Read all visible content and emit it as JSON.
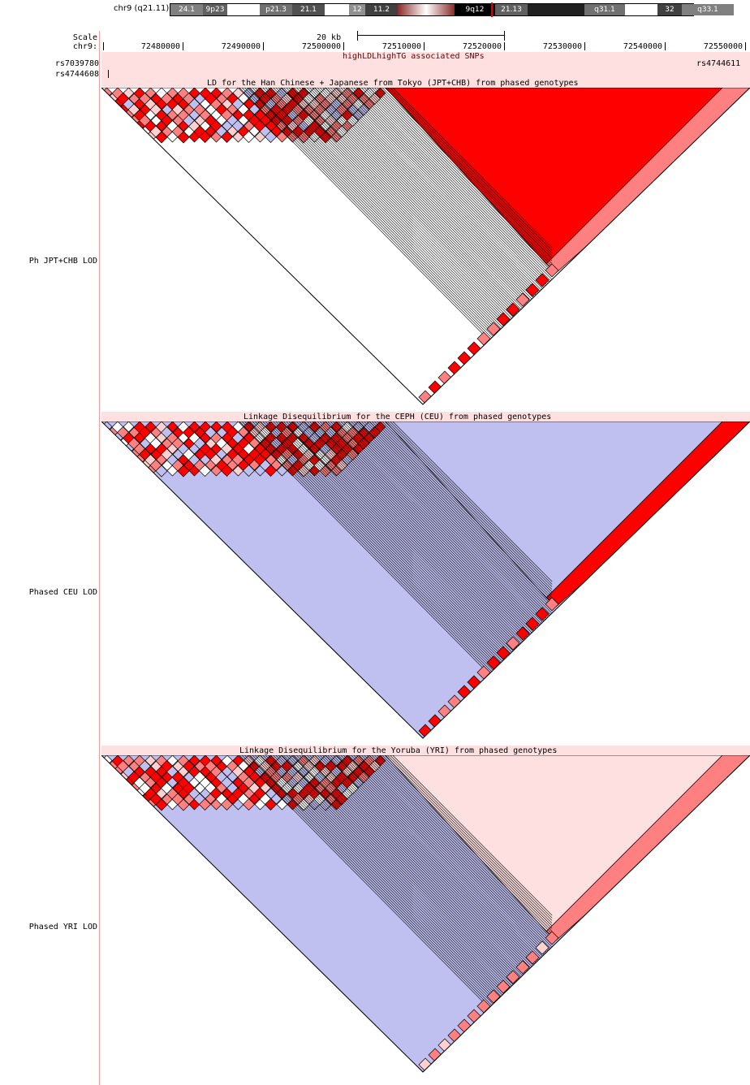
{
  "ideogram": {
    "label": "chr9 (q21.11)",
    "bands": [
      {
        "name": "24.1",
        "shade": "#808080"
      },
      {
        "name": "9p23",
        "shade": "#606060"
      },
      {
        "name": "",
        "shade": "#ffffff"
      },
      {
        "name": "p21.3",
        "shade": "#707070"
      },
      {
        "name": "21.1",
        "shade": "#505050"
      },
      {
        "name": "",
        "shade": "#ffffff"
      },
      {
        "name": "12",
        "shade": "#909090"
      },
      {
        "name": "11.2",
        "shade": "#404040"
      },
      {
        "name": "",
        "shade": "#8b2b2b"
      },
      {
        "name": "9q12",
        "shade": "#000000"
      },
      {
        "name": "21.13",
        "shade": "#606060"
      },
      {
        "name": "",
        "shade": "#202020"
      },
      {
        "name": "q31.1",
        "shade": "#707070"
      },
      {
        "name": "",
        "shade": "#ffffff"
      },
      {
        "name": "32",
        "shade": "#404040"
      },
      {
        "name": "q33.1",
        "shade": "#808080"
      }
    ]
  },
  "scale": {
    "label": "Scale",
    "bar_label": "20 kb",
    "chrom_label": "chr9:",
    "ticks": [
      "72480000",
      "72490000",
      "72500000",
      "72510000",
      "72520000",
      "72530000",
      "72540000",
      "72550000"
    ]
  },
  "snp_track": {
    "title": "highLDLhighTG associated SNPs",
    "left_snp": "rs7039780",
    "right_snp": "rs4744611",
    "second_snp": "rs4744608"
  },
  "ld_tracks": [
    {
      "track_label": "Ph JPT+CHB LOD",
      "title": "LD for the Han Chinese + Japanese from Tokyo (JPT+CHB) from phased genotypes",
      "big_block": "#ff0000"
    },
    {
      "track_label": "Phased CEU LOD",
      "title": "Linkage Disequilibrium for the CEPH (CEU) from phased genotypes",
      "big_block": "#c0c0f0"
    },
    {
      "track_label": "Phased YRI LOD",
      "title": "Linkage Disequilibrium for the Yoruba (YRI) from phased genotypes",
      "big_block": "#ffe0e0"
    }
  ],
  "colors": {
    "strong_ld": "#ff0000",
    "medium_ld": "#ff8080",
    "weak_ld": "#ffd0d0",
    "no_ld": "#c0c0f0",
    "track_bg": "#ffe0e0"
  }
}
